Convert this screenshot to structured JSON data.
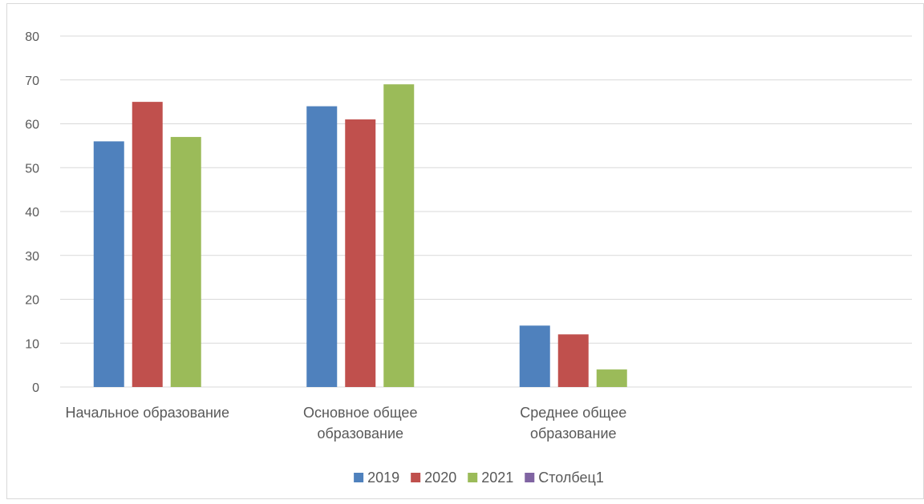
{
  "chart_data": {
    "type": "bar",
    "title": "",
    "xlabel": "",
    "ylabel": "",
    "categories": [
      [
        "Начальное образование"
      ],
      [
        "Основное общее",
        "образование"
      ],
      [
        "Среднее общее",
        "образование"
      ],
      [
        ""
      ]
    ],
    "series": [
      {
        "name": "2019",
        "color": "#4f81bd",
        "values": [
          56,
          64,
          14,
          null
        ]
      },
      {
        "name": "2020",
        "color": "#c0504d",
        "values": [
          65,
          61,
          12,
          null
        ]
      },
      {
        "name": "2021",
        "color": "#9bbb59",
        "values": [
          57,
          69,
          4,
          null
        ]
      },
      {
        "name": "Столбец1",
        "color": "#8064a2",
        "values": [
          null,
          null,
          null,
          null
        ]
      }
    ],
    "ylim": [
      0,
      80
    ],
    "yticks": [
      0,
      10,
      20,
      30,
      40,
      50,
      60,
      70,
      80
    ],
    "grid": true,
    "legend_position": "bottom"
  }
}
